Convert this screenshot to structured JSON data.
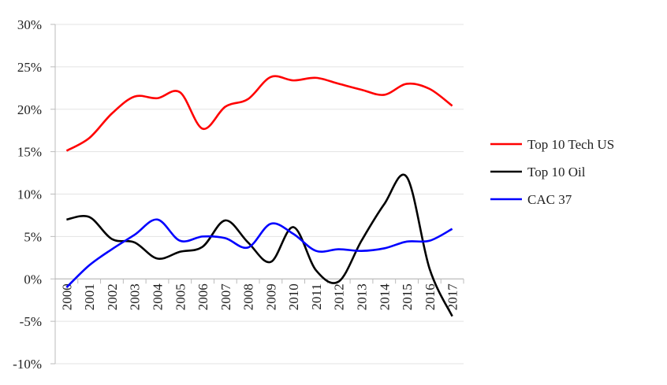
{
  "chart_data": {
    "type": "line",
    "title": "",
    "xlabel": "",
    "ylabel": "",
    "ylim": [
      -10,
      30
    ],
    "yticks": [
      "30%",
      "25%",
      "20%",
      "15%",
      "10%",
      "5%",
      "0%",
      "-5%",
      "-10%"
    ],
    "ytick_values": [
      30,
      25,
      20,
      15,
      10,
      5,
      0,
      -5,
      -10
    ],
    "grid": true,
    "legend_position": "right",
    "categories": [
      "2000",
      "2001",
      "2002",
      "2003",
      "2004",
      "2005",
      "2006",
      "2007",
      "2008",
      "2009",
      "2010",
      "2011",
      "2012",
      "2013",
      "2014",
      "2015",
      "2016",
      "2017"
    ],
    "series": [
      {
        "name": "Top 10 Tech US",
        "color": "#ff0000",
        "values": [
          15.1,
          16.6,
          19.5,
          21.5,
          21.3,
          22.0,
          17.7,
          20.3,
          21.2,
          23.8,
          23.4,
          23.7,
          23.0,
          22.3,
          21.7,
          23.0,
          22.4,
          20.4
        ]
      },
      {
        "name": "Top 10 Oil",
        "color": "#000000",
        "values": [
          7.0,
          7.3,
          4.7,
          4.3,
          2.4,
          3.2,
          3.8,
          6.9,
          4.3,
          2.0,
          6.1,
          1.0,
          -0.3,
          4.5,
          8.8,
          12.0,
          1.2,
          -4.4
        ]
      },
      {
        "name": "CAC 37",
        "color": "#0000ff",
        "values": [
          -1.0,
          1.6,
          3.5,
          5.2,
          7.0,
          4.5,
          5.0,
          4.8,
          3.7,
          6.5,
          5.3,
          3.3,
          3.5,
          3.3,
          3.6,
          4.4,
          4.5,
          5.9
        ]
      }
    ]
  }
}
